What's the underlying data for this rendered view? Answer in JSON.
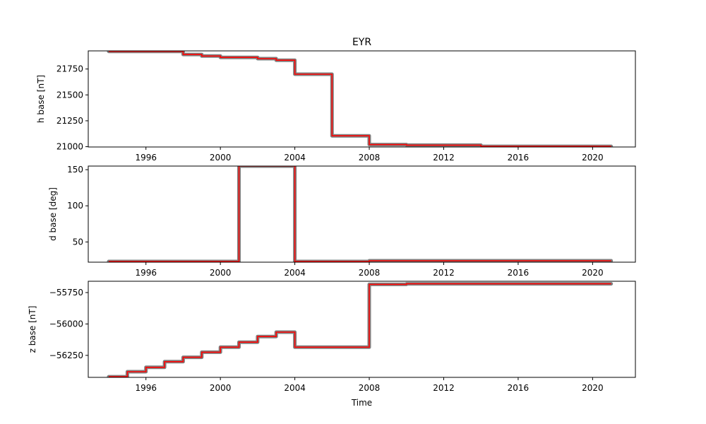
{
  "chart_data": [
    {
      "type": "line",
      "title": "EYR",
      "xlabel": "",
      "ylabel": "h base [nT]",
      "xlim": [
        1992.9,
        2022.3
      ],
      "ylim": [
        20997,
        21925
      ],
      "xticks": [
        1996,
        2000,
        2004,
        2008,
        2012,
        2016,
        2020
      ],
      "yticks": [
        21000,
        21250,
        21500,
        21750
      ],
      "series": [
        {
          "role": "baseline",
          "color": "#ff0000",
          "x": [
            1994.0,
            1998.0,
            1998.0,
            1999.0,
            1999.0,
            2000.0,
            2000.0,
            2002.0,
            2002.0,
            2003.0,
            2003.0,
            2004.0,
            2004.0,
            2006.0,
            2006.0,
            2008.0,
            2008.0,
            2010.0,
            2010.0,
            2014.0,
            2014.0,
            2021.0
          ],
          "y": [
            21920,
            21920,
            21890,
            21890,
            21875,
            21875,
            21862,
            21862,
            21850,
            21850,
            21835,
            21835,
            21700,
            21700,
            21105,
            21105,
            21020,
            21020,
            21015,
            21015,
            21003,
            21003
          ]
        },
        {
          "role": "measurements",
          "color": "#808080",
          "x": [
            1994.0,
            1998.0,
            1998.0,
            1999.0,
            1999.0,
            2000.0,
            2000.0,
            2002.0,
            2002.0,
            2003.0,
            2003.0,
            2004.0,
            2004.0,
            2006.0,
            2006.0,
            2008.0,
            2008.0,
            2010.0,
            2010.0,
            2014.0,
            2014.0,
            2021.0
          ],
          "y": [
            21920,
            21920,
            21890,
            21890,
            21875,
            21875,
            21862,
            21862,
            21850,
            21850,
            21835,
            21835,
            21700,
            21700,
            21105,
            21105,
            21020,
            21020,
            21015,
            21015,
            21003,
            21003
          ]
        }
      ]
    },
    {
      "type": "line",
      "title": "",
      "xlabel": "",
      "ylabel": "d base [deg]",
      "xlim": [
        1992.9,
        2022.3
      ],
      "ylim": [
        22,
        155
      ],
      "xticks": [
        1996,
        2000,
        2004,
        2008,
        2012,
        2016,
        2020
      ],
      "yticks": [
        50,
        100,
        150
      ],
      "series": [
        {
          "role": "baseline",
          "color": "#ff0000",
          "x": [
            1994.0,
            2001.0,
            2001.0,
            2004.0,
            2004.0,
            2008.0,
            2008.0,
            2021.0
          ],
          "y": [
            23,
            23,
            155,
            155,
            23,
            23,
            24,
            24
          ]
        },
        {
          "role": "measurements",
          "color": "#808080",
          "x": [
            1994.0,
            2001.0,
            2001.0,
            2004.0,
            2004.0,
            2008.0,
            2008.0,
            2021.0
          ],
          "y": [
            23,
            23,
            155,
            155,
            23,
            23,
            24,
            24
          ]
        }
      ]
    },
    {
      "type": "line",
      "title": "",
      "xlabel": "Time",
      "ylabel": "z base [nT]",
      "xlim": [
        1992.9,
        2022.3
      ],
      "ylim": [
        -56425,
        -55660
      ],
      "xticks": [
        1996,
        2000,
        2004,
        2008,
        2012,
        2016,
        2020
      ],
      "yticks": [
        -56250,
        -56000,
        -55750
      ],
      "series": [
        {
          "role": "baseline",
          "color": "#ff0000",
          "x": [
            1994.0,
            1995.0,
            1995.0,
            1996.0,
            1996.0,
            1997.0,
            1997.0,
            1998.0,
            1998.0,
            1999.0,
            1999.0,
            2000.0,
            2000.0,
            2001.0,
            2001.0,
            2002.0,
            2002.0,
            2003.0,
            2003.0,
            2004.0,
            2004.0,
            2008.0,
            2008.0,
            2010.0,
            2010.0,
            2021.0
          ],
          "y": [
            -56420,
            -56420,
            -56380,
            -56380,
            -56345,
            -56345,
            -56300,
            -56300,
            -56265,
            -56265,
            -56225,
            -56225,
            -56185,
            -56185,
            -56145,
            -56145,
            -56100,
            -56100,
            -56065,
            -56065,
            -56185,
            -56185,
            -55685,
            -55685,
            -55680,
            -55680
          ]
        },
        {
          "role": "measurements",
          "color": "#808080",
          "x": [
            1994.0,
            1995.0,
            1995.0,
            1996.0,
            1996.0,
            1997.0,
            1997.0,
            1998.0,
            1998.0,
            1999.0,
            1999.0,
            2000.0,
            2000.0,
            2001.0,
            2001.0,
            2002.0,
            2002.0,
            2003.0,
            2003.0,
            2004.0,
            2004.0,
            2008.0,
            2008.0,
            2010.0,
            2010.0,
            2021.0
          ],
          "y": [
            -56420,
            -56420,
            -56380,
            -56380,
            -56345,
            -56345,
            -56300,
            -56300,
            -56265,
            -56265,
            -56225,
            -56225,
            -56185,
            -56185,
            -56145,
            -56145,
            -56100,
            -56100,
            -56065,
            -56065,
            -56185,
            -56185,
            -55685,
            -55685,
            -55680,
            -55680
          ]
        }
      ]
    }
  ]
}
